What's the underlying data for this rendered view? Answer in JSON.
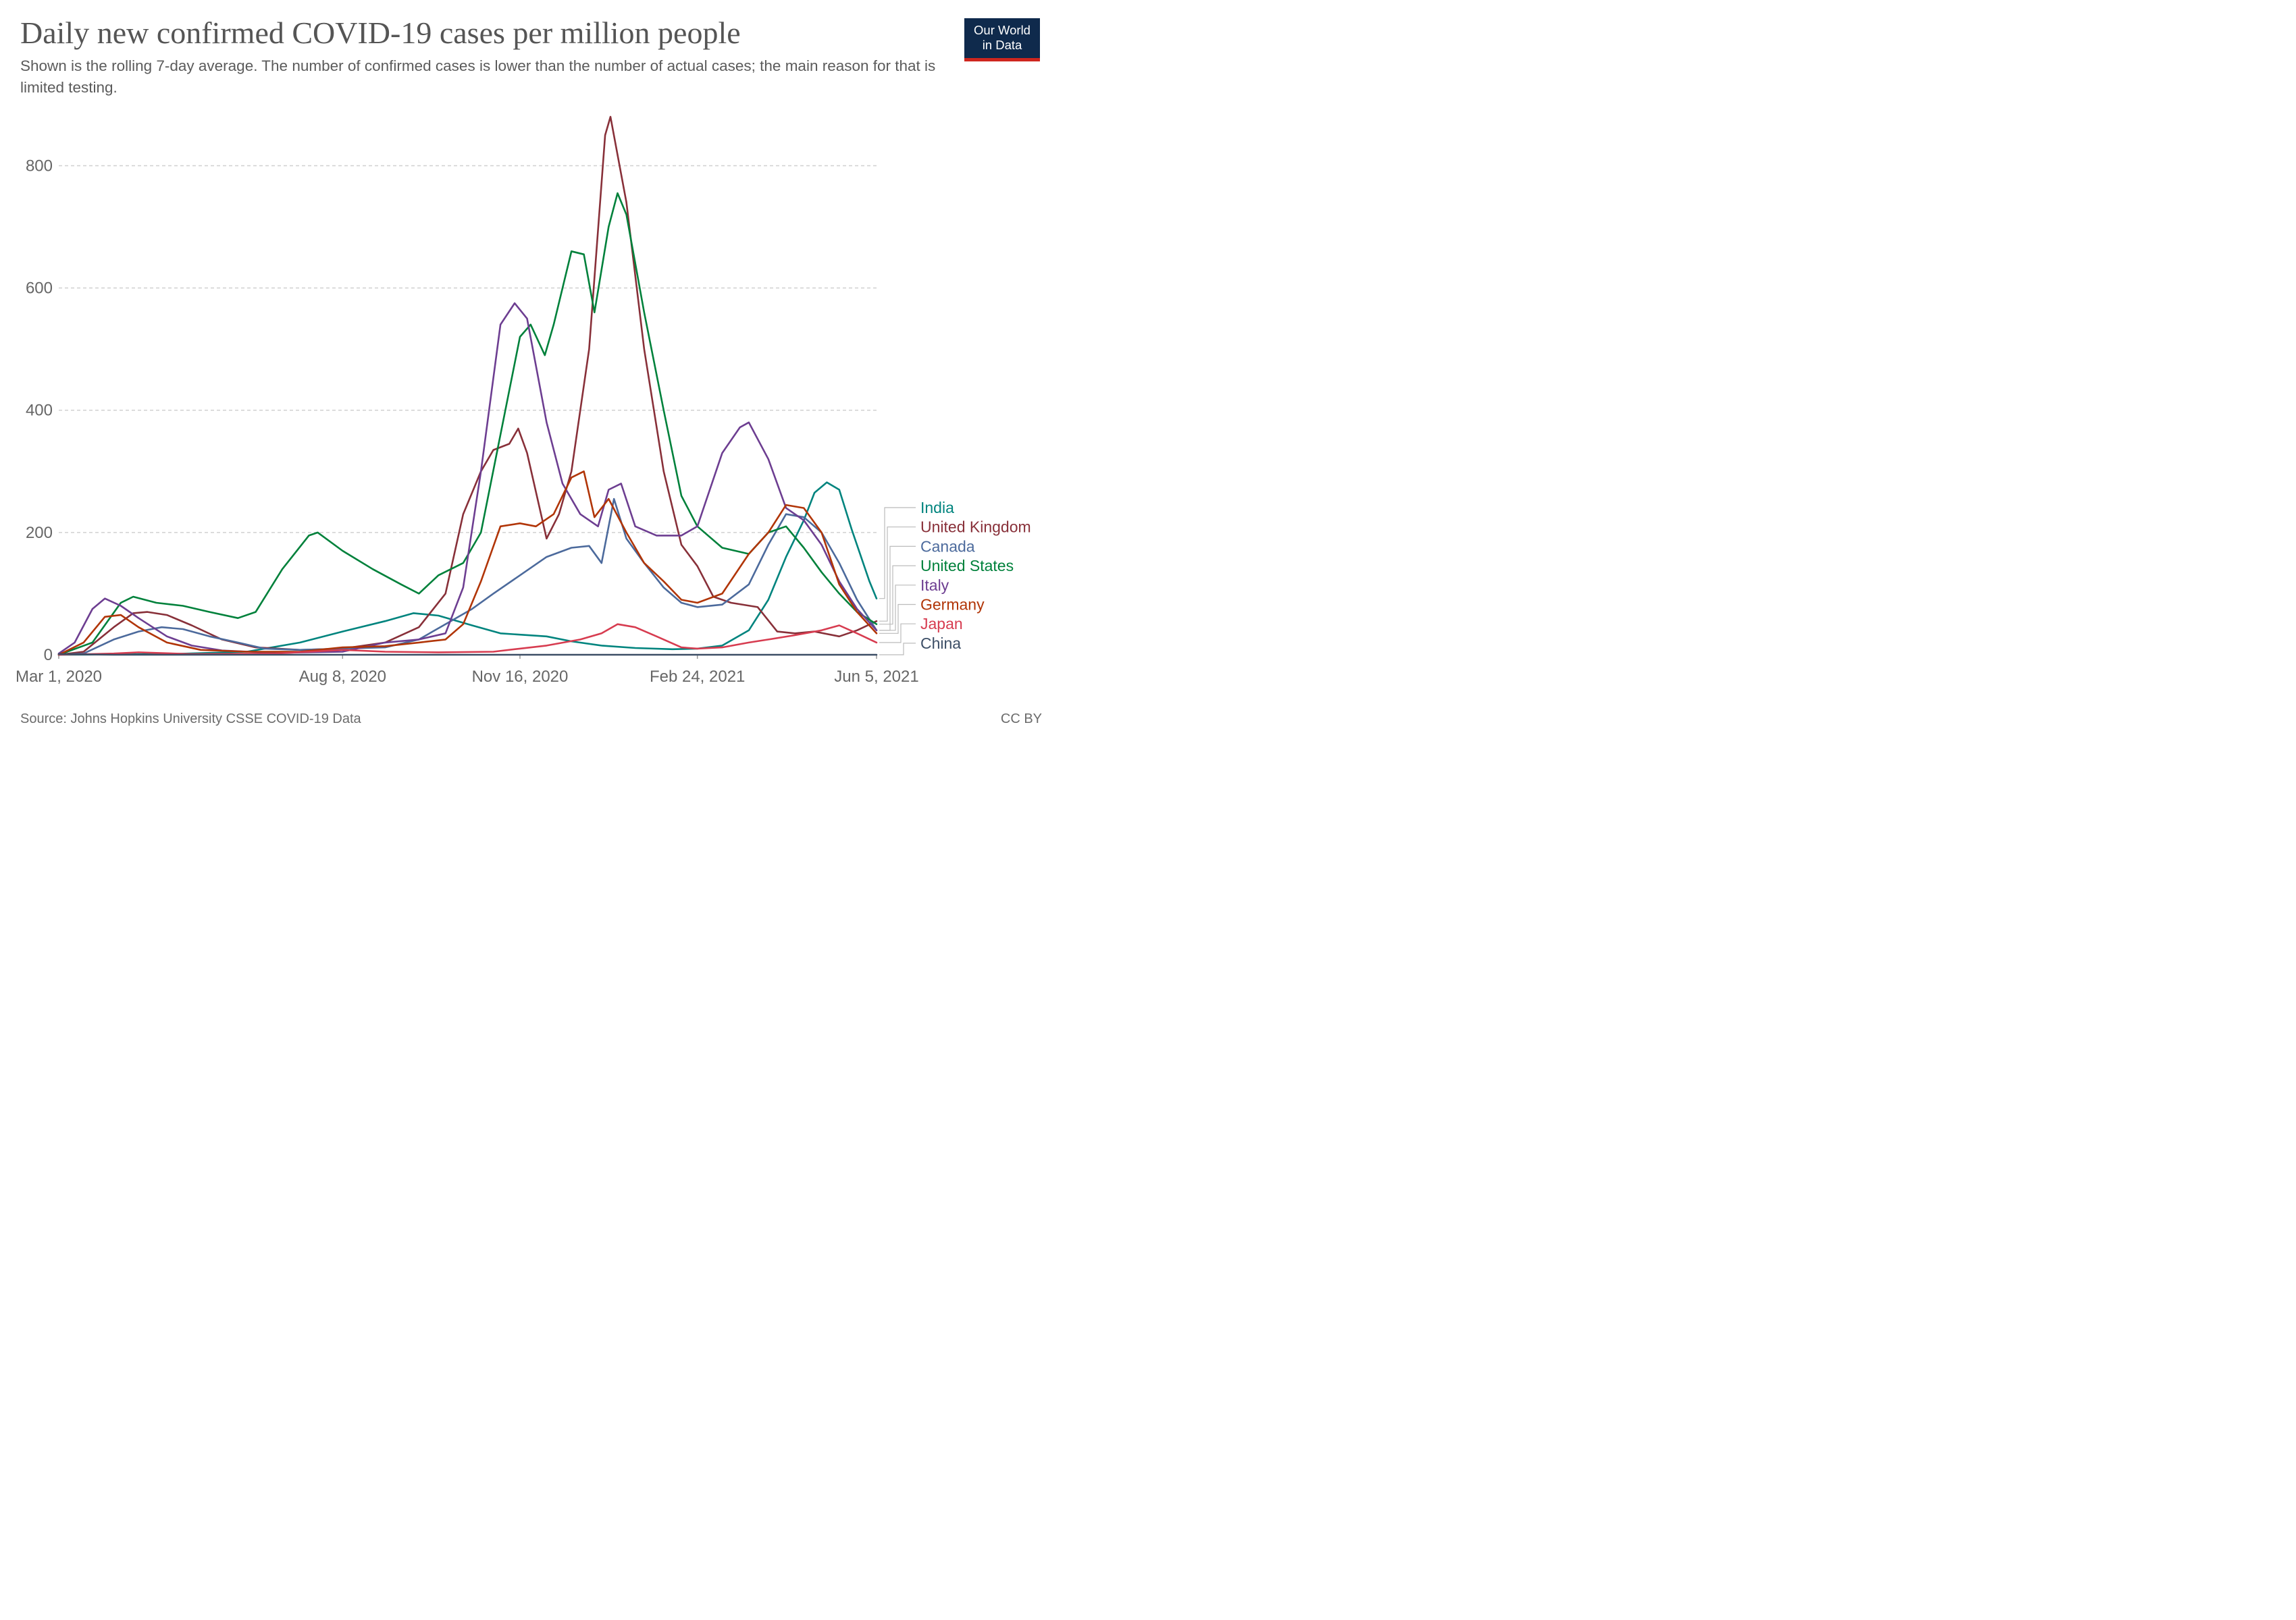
{
  "header": {
    "title": "Daily new confirmed COVID-19 cases per million people",
    "subtitle": "Shown is the rolling 7-day average. The number of confirmed cases is lower than the number of actual cases; the main reason for that is limited testing.",
    "logo_line1": "Our World",
    "logo_line2": "in Data"
  },
  "footer": {
    "source": "Source: Johns Hopkins University CSSE COVID-19 Data",
    "license": "CC BY"
  },
  "chart_data": {
    "type": "line",
    "title": "Daily new confirmed COVID-19 cases per million people",
    "xlabel": "",
    "ylabel": "",
    "x_domain": [
      "2020-03-01",
      "2021-06-05"
    ],
    "x_tick_labels": [
      "Mar 1, 2020",
      "Aug 8, 2020",
      "Nov 16, 2020",
      "Feb 24, 2021",
      "Jun 5, 2021"
    ],
    "x_ticks": [
      "2020-03-01",
      "2020-08-08",
      "2020-11-16",
      "2021-02-24",
      "2021-06-05"
    ],
    "y_ticks": [
      0,
      200,
      400,
      600,
      800
    ],
    "ylim": [
      0,
      880
    ],
    "grid": "horizontal dashed",
    "legend": "right, labels at line ends",
    "series": [
      {
        "name": "India",
        "color": "#00847e",
        "points": [
          [
            "2020-03-01",
            0
          ],
          [
            "2020-05-01",
            1
          ],
          [
            "2020-06-15",
            5
          ],
          [
            "2020-07-15",
            20
          ],
          [
            "2020-08-08",
            38
          ],
          [
            "2020-09-01",
            55
          ],
          [
            "2020-09-17",
            68
          ],
          [
            "2020-10-01",
            64
          ],
          [
            "2020-10-20",
            48
          ],
          [
            "2020-11-05",
            35
          ],
          [
            "2020-12-01",
            30
          ],
          [
            "2020-12-15",
            22
          ],
          [
            "2021-01-01",
            15
          ],
          [
            "2021-01-20",
            11
          ],
          [
            "2021-02-10",
            9
          ],
          [
            "2021-02-24",
            10
          ],
          [
            "2021-03-10",
            15
          ],
          [
            "2021-03-25",
            40
          ],
          [
            "2021-04-05",
            90
          ],
          [
            "2021-04-15",
            160
          ],
          [
            "2021-04-25",
            220
          ],
          [
            "2021-05-01",
            265
          ],
          [
            "2021-05-08",
            282
          ],
          [
            "2021-05-15",
            270
          ],
          [
            "2021-05-22",
            205
          ],
          [
            "2021-06-01",
            120
          ],
          [
            "2021-06-05",
            92
          ]
        ]
      },
      {
        "name": "United Kingdom",
        "color": "#883039",
        "points": [
          [
            "2020-03-01",
            0
          ],
          [
            "2020-03-15",
            5
          ],
          [
            "2020-04-01",
            45
          ],
          [
            "2020-04-12",
            68
          ],
          [
            "2020-04-20",
            70
          ],
          [
            "2020-05-01",
            65
          ],
          [
            "2020-05-15",
            48
          ],
          [
            "2020-06-01",
            25
          ],
          [
            "2020-06-20",
            12
          ],
          [
            "2020-07-15",
            8
          ],
          [
            "2020-08-08",
            10
          ],
          [
            "2020-09-01",
            20
          ],
          [
            "2020-09-20",
            45
          ],
          [
            "2020-10-05",
            100
          ],
          [
            "2020-10-15,",
            230
          ],
          [
            "2020-10-25",
            300
          ],
          [
            "2020-11-01",
            335
          ],
          [
            "2020-11-10",
            345
          ],
          [
            "2020-11-15",
            370
          ],
          [
            "2020-11-20",
            330
          ],
          [
            "2020-12-01",
            190
          ],
          [
            "2020-12-08",
            230
          ],
          [
            "2020-12-15",
            300
          ],
          [
            "2020-12-25",
            500
          ],
          [
            "2021-01-03",
            850
          ],
          [
            "2021-01-06",
            880
          ],
          [
            "2021-01-15",
            740
          ],
          [
            "2021-01-25",
            500
          ],
          [
            "2021-02-05",
            300
          ],
          [
            "2021-02-15",
            180
          ],
          [
            "2021-02-24",
            145
          ],
          [
            "2021-03-05",
            95
          ],
          [
            "2021-03-15",
            85
          ],
          [
            "2021-03-30",
            78
          ],
          [
            "2021-04-10",
            38
          ],
          [
            "2021-04-20",
            35
          ],
          [
            "2021-05-01",
            38
          ],
          [
            "2021-05-15",
            30
          ],
          [
            "2021-05-25",
            40
          ],
          [
            "2021-06-05",
            55
          ]
        ]
      },
      {
        "name": "Canada",
        "color": "#4c6a9c",
        "points": [
          [
            "2020-03-01",
            0
          ],
          [
            "2020-03-15",
            2
          ],
          [
            "2020-04-01",
            25
          ],
          [
            "2020-04-15",
            38
          ],
          [
            "2020-04-28",
            45
          ],
          [
            "2020-05-10",
            42
          ],
          [
            "2020-05-25",
            30
          ],
          [
            "2020-06-10",
            20
          ],
          [
            "2020-06-25",
            10
          ],
          [
            "2020-07-15",
            8
          ],
          [
            "2020-08-08",
            10
          ],
          [
            "2020-09-01",
            12
          ],
          [
            "2020-09-20",
            25
          ],
          [
            "2020-10-05",
            50
          ],
          [
            "2020-10-20",
            75
          ],
          [
            "2020-11-01",
            100
          ],
          [
            "2020-11-16",
            130
          ],
          [
            "2020-12-01",
            160
          ],
          [
            "2020-12-15",
            175
          ],
          [
            "2020-12-25",
            178
          ],
          [
            "2021-01-01",
            150
          ],
          [
            "2021-01-08",
            255
          ],
          [
            "2021-01-15",
            190
          ],
          [
            "2021-01-25",
            150
          ],
          [
            "2021-02-05",
            110
          ],
          [
            "2021-02-15",
            85
          ],
          [
            "2021-02-24",
            78
          ],
          [
            "2021-03-10",
            82
          ],
          [
            "2021-03-25",
            115
          ],
          [
            "2021-04-05",
            180
          ],
          [
            "2021-04-15",
            230
          ],
          [
            "2021-04-25",
            225
          ],
          [
            "2021-05-05",
            200
          ],
          [
            "2021-05-15",
            150
          ],
          [
            "2021-05-25",
            90
          ],
          [
            "2021-06-05",
            40
          ]
        ]
      },
      {
        "name": "United States",
        "color": "#00813b",
        "points": [
          [
            "2020-03-01",
            0
          ],
          [
            "2020-03-20",
            20
          ],
          [
            "2020-04-05",
            85
          ],
          [
            "2020-04-12",
            95
          ],
          [
            "2020-04-25",
            85
          ],
          [
            "2020-05-10",
            80
          ],
          [
            "2020-05-25",
            70
          ],
          [
            "2020-06-10",
            60
          ],
          [
            "2020-06-20",
            70
          ],
          [
            "2020-07-05",
            140
          ],
          [
            "2020-07-20",
            195
          ],
          [
            "2020-07-25",
            200
          ],
          [
            "2020-08-08",
            170
          ],
          [
            "2020-08-25",
            140
          ],
          [
            "2020-09-10",
            115
          ],
          [
            "2020-09-20",
            100
          ],
          [
            "2020-10-01",
            130
          ],
          [
            "2020-10-15",
            150
          ],
          [
            "2020-10-25,",
            200
          ],
          [
            "2020-11-05",
            360
          ],
          [
            "2020-11-16",
            520
          ],
          [
            "2020-11-22",
            540
          ],
          [
            "2020-11-30",
            490
          ],
          [
            "2020-12-05",
            540
          ],
          [
            "2020-12-15",
            660
          ],
          [
            "2020-12-22",
            655
          ],
          [
            "2020-12-28",
            560
          ],
          [
            "2021-01-05",
            700
          ],
          [
            "2021-01-10",
            755
          ],
          [
            "2021-01-15",
            720
          ],
          [
            "2021-01-25",
            560
          ],
          [
            "2021-02-05",
            400
          ],
          [
            "2021-02-15",
            260
          ],
          [
            "2021-02-24",
            210
          ],
          [
            "2021-03-10",
            175
          ],
          [
            "2021-03-25",
            165
          ],
          [
            "2021-04-05",
            200
          ],
          [
            "2021-04-15",
            210
          ],
          [
            "2021-04-25",
            175
          ],
          [
            "2021-05-05",
            135
          ],
          [
            "2021-05-15",
            100
          ],
          [
            "2021-05-25",
            70
          ],
          [
            "2021-06-05",
            50
          ]
        ]
      },
      {
        "name": "Italy",
        "color": "#6d3e91",
        "points": [
          [
            "2020-03-01",
            2
          ],
          [
            "2020-03-10",
            20
          ],
          [
            "2020-03-20",
            75
          ],
          [
            "2020-03-27",
            92
          ],
          [
            "2020-04-05",
            80
          ],
          [
            "2020-04-15",
            60
          ],
          [
            "2020-05-01",
            30
          ],
          [
            "2020-05-15",
            15
          ],
          [
            "2020-06-01",
            7
          ],
          [
            "2020-07-01",
            3
          ],
          [
            "2020-08-08",
            5
          ],
          [
            "2020-09-01",
            20
          ],
          [
            "2020-09-20",
            25
          ],
          [
            "2020-10-05",
            35
          ],
          [
            "2020-10-15",
            110
          ],
          [
            "2020-10-25",
            300
          ],
          [
            "2020-11-05",
            540
          ],
          [
            "2020-11-13",
            575
          ],
          [
            "2020-11-20",
            550
          ],
          [
            "2020-12-01",
            380
          ],
          [
            "2020-12-10",
            280
          ],
          [
            "2020-12-20",
            230
          ],
          [
            "2020-12-30",
            210
          ],
          [
            "2021-01-05",
            270
          ],
          [
            "2021-01-12",
            280
          ],
          [
            "2021-01-20",
            210
          ],
          [
            "2021-02-01",
            195
          ],
          [
            "2021-02-15",
            195
          ],
          [
            "2021-02-24",
            210
          ],
          [
            "2021-03-10",
            330
          ],
          [
            "2021-03-20",
            372
          ],
          [
            "2021-03-25",
            380
          ],
          [
            "2021-04-05",
            320
          ],
          [
            "2021-04-15",
            240
          ],
          [
            "2021-04-25",
            220
          ],
          [
            "2021-05-05",
            180
          ],
          [
            "2021-05-15",
            120
          ],
          [
            "2021-05-25",
            75
          ],
          [
            "2021-06-05",
            40
          ]
        ]
      },
      {
        "name": "Germany",
        "color": "#b13507",
        "points": [
          [
            "2020-03-01",
            0
          ],
          [
            "2020-03-15",
            20
          ],
          [
            "2020-03-27",
            62
          ],
          [
            "2020-04-05",
            65
          ],
          [
            "2020-04-15",
            45
          ],
          [
            "2020-05-01",
            20
          ],
          [
            "2020-05-20",
            8
          ],
          [
            "2020-06-15",
            5
          ],
          [
            "2020-07-15",
            5
          ],
          [
            "2020-08-08",
            12
          ],
          [
            "2020-09-01",
            14
          ],
          [
            "2020-09-20",
            20
          ],
          [
            "2020-10-05",
            25
          ],
          [
            "2020-10-15",
            50
          ],
          [
            "2020-10-25",
            120
          ],
          [
            "2020-11-05",
            210
          ],
          [
            "2020-11-16",
            215
          ],
          [
            "2020-11-25",
            210
          ],
          [
            "2020-12-05",
            230
          ],
          [
            "2020-12-15",
            290
          ],
          [
            "2020-12-22",
            300
          ],
          [
            "2020-12-28",
            225
          ],
          [
            "2021-01-05",
            255
          ],
          [
            "2021-01-15",
            200
          ],
          [
            "2021-01-25",
            150
          ],
          [
            "2021-02-05",
            120
          ],
          [
            "2021-02-15",
            90
          ],
          [
            "2021-02-24",
            85
          ],
          [
            "2021-03-10",
            100
          ],
          [
            "2021-03-25",
            165
          ],
          [
            "2021-04-05",
            200
          ],
          [
            "2021-04-15",
            245
          ],
          [
            "2021-04-25",
            240
          ],
          [
            "2021-05-05",
            200
          ],
          [
            "2021-05-15",
            115
          ],
          [
            "2021-05-25",
            70
          ],
          [
            "2021-06-05",
            35
          ]
        ]
      },
      {
        "name": "Japan",
        "color": "#d73c50",
        "points": [
          [
            "2020-03-01",
            0
          ],
          [
            "2020-04-01",
            2
          ],
          [
            "2020-04-15",
            4
          ],
          [
            "2020-05-15",
            1
          ],
          [
            "2020-07-01",
            2
          ],
          [
            "2020-08-08",
            8
          ],
          [
            "2020-09-01",
            5
          ],
          [
            "2020-10-01",
            4
          ],
          [
            "2020-11-01",
            5
          ],
          [
            "2020-11-16",
            10
          ],
          [
            "2020-12-01",
            15
          ],
          [
            "2020-12-20",
            25
          ],
          [
            "2021-01-01",
            35
          ],
          [
            "2021-01-10",
            50
          ],
          [
            "2021-01-20",
            45
          ],
          [
            "2021-02-01",
            30
          ],
          [
            "2021-02-15",
            12
          ],
          [
            "2021-02-24",
            10
          ],
          [
            "2021-03-10",
            12
          ],
          [
            "2021-03-25",
            20
          ],
          [
            "2021-04-05",
            25
          ],
          [
            "2021-04-20",
            32
          ],
          [
            "2021-05-05",
            40
          ],
          [
            "2021-05-15",
            48
          ],
          [
            "2021-05-25",
            35
          ],
          [
            "2021-06-05",
            20
          ]
        ]
      },
      {
        "name": "China",
        "color": "#3c4e66",
        "points": [
          [
            "2020-03-01",
            1
          ],
          [
            "2020-04-01",
            0
          ],
          [
            "2021-06-05",
            0
          ]
        ]
      }
    ]
  }
}
